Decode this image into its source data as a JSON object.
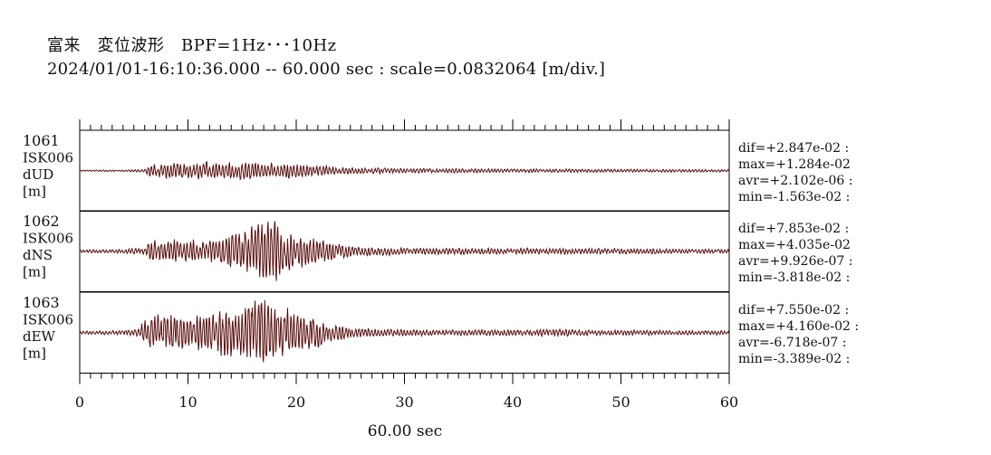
{
  "header": {
    "title_line1": "富来　変位波形　BPF=1Hz･･･10Hz",
    "title_line2": "2024/01/01-16:10:36.000 -- 60.000 sec : scale=0.0832064 [m/div.]"
  },
  "chart_data": {
    "type": "line",
    "xlabel": "60.00 sec",
    "xlim": [
      0,
      60
    ],
    "x_ticks": [
      "0",
      "10",
      "20",
      "30",
      "40",
      "50",
      "60"
    ],
    "line_color": "#5a0f0f",
    "channels": [
      {
        "label_lines": [
          "1061",
          "ISK006",
          "dUD",
          "[m]"
        ],
        "stats": [
          "dif=+2.847e-02 :",
          "max=+1.284e-02",
          "avr=+2.102e-06 :",
          "min=-1.563e-02 :"
        ],
        "max": 0.01284,
        "min": -0.01563,
        "envelope": [
          [
            0,
            0.05
          ],
          [
            4,
            0.06
          ],
          [
            6,
            0.12
          ],
          [
            6.5,
            0.45
          ],
          [
            8,
            0.55
          ],
          [
            10,
            0.6
          ],
          [
            11.5,
            0.75
          ],
          [
            13,
            0.55
          ],
          [
            15,
            0.7
          ],
          [
            16,
            0.6
          ],
          [
            18,
            0.6
          ],
          [
            20,
            0.5
          ],
          [
            22,
            0.4
          ],
          [
            23,
            0.35
          ],
          [
            25,
            0.25
          ],
          [
            30,
            0.18
          ],
          [
            40,
            0.14
          ],
          [
            50,
            0.12
          ],
          [
            60,
            0.1
          ]
        ]
      },
      {
        "label_lines": [
          "1062",
          "ISK006",
          "dNS",
          "[m]"
        ],
        "stats": [
          "dif=+7.853e-02 :",
          "max=+4.035e-02",
          "avr=+9.926e-07 :",
          "min=-3.818e-02 :"
        ],
        "max": 0.04035,
        "min": -0.03818,
        "envelope": [
          [
            0,
            0.05
          ],
          [
            4,
            0.06
          ],
          [
            6,
            0.1
          ],
          [
            6.5,
            0.3
          ],
          [
            9,
            0.33
          ],
          [
            11,
            0.3
          ],
          [
            13,
            0.38
          ],
          [
            14.5,
            0.55
          ],
          [
            16,
            0.85
          ],
          [
            17,
            1.0
          ],
          [
            18,
            0.9
          ],
          [
            19,
            0.6
          ],
          [
            21,
            0.45
          ],
          [
            23,
            0.3
          ],
          [
            25,
            0.15
          ],
          [
            30,
            0.1
          ],
          [
            40,
            0.08
          ],
          [
            45,
            0.09
          ],
          [
            60,
            0.06
          ]
        ]
      },
      {
        "label_lines": [
          "1063",
          "ISK006",
          "dEW",
          "[m]"
        ],
        "stats": [
          "dif=+7.550e-02 :",
          "max=+4.160e-02 :",
          "avr=-6.718e-07 :",
          "min=-3.389e-02 :"
        ],
        "max": 0.0416,
        "min": -0.03389,
        "envelope": [
          [
            0,
            0.05
          ],
          [
            4,
            0.06
          ],
          [
            5.5,
            0.12
          ],
          [
            6,
            0.4
          ],
          [
            8,
            0.55
          ],
          [
            10,
            0.45
          ],
          [
            12,
            0.55
          ],
          [
            14,
            0.7
          ],
          [
            16,
            0.9
          ],
          [
            17,
            1.0
          ],
          [
            18,
            0.8
          ],
          [
            20,
            0.6
          ],
          [
            22,
            0.5
          ],
          [
            23,
            0.3
          ],
          [
            25,
            0.15
          ],
          [
            30,
            0.09
          ],
          [
            40,
            0.08
          ],
          [
            45,
            0.1
          ],
          [
            50,
            0.07
          ],
          [
            60,
            0.06
          ]
        ]
      }
    ]
  }
}
